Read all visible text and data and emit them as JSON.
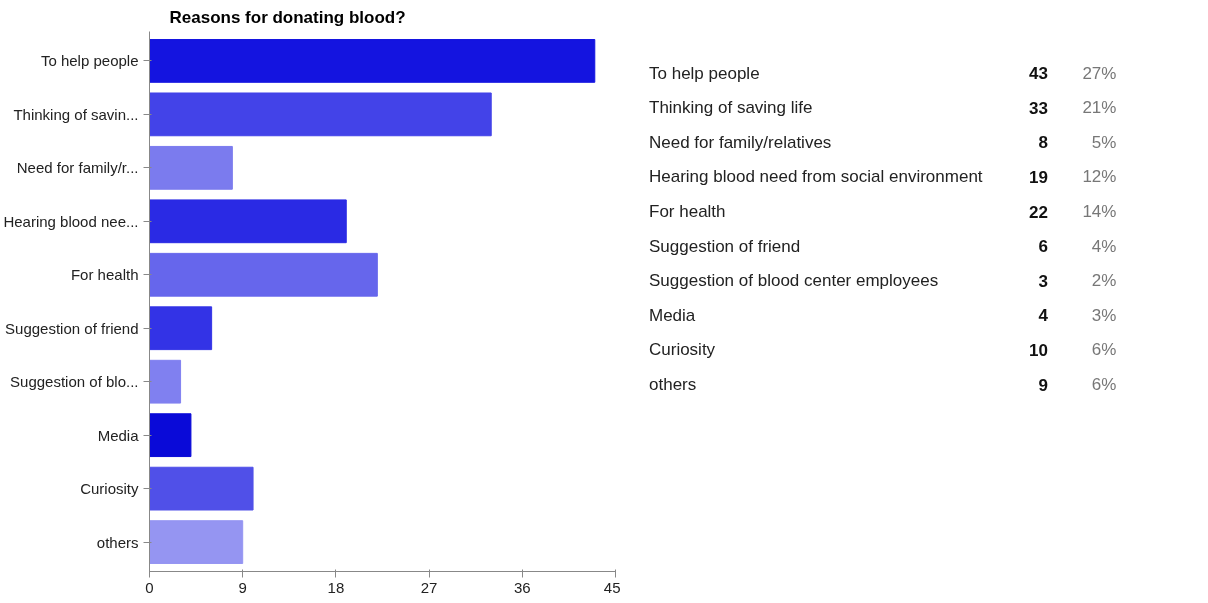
{
  "chart_data": [
    {
      "type": "bar",
      "orientation": "horizontal",
      "title": "Reasons for donating blood?",
      "categories": [
        "To help people",
        "Thinking of savin...",
        "Need for family/r...",
        "Hearing blood nee...",
        "For health",
        "Suggestion of friend",
        "Suggestion of blo...",
        "Media",
        "Curiosity",
        "others"
      ],
      "values": [
        43,
        33,
        8,
        19,
        22,
        6,
        3,
        4,
        10,
        9
      ],
      "colors": [
        "#1414e0",
        "#4343e8",
        "#7b7bee",
        "#2a2ae4",
        "#6666ec",
        "#3333e6",
        "#8080f0",
        "#0a0ad8",
        "#5050e8",
        "#9595f2"
      ],
      "xlim": [
        0,
        45
      ],
      "xticks": [
        0,
        9,
        18,
        27,
        36,
        45
      ],
      "grid": false
    },
    {
      "type": "other",
      "categories": [
        "To help people",
        "Thinking of saving life",
        "Need for family/relatives",
        "Hearing blood need from social environment",
        "For health",
        "Suggestion of friend",
        "Suggestion of blood center employees",
        "Media",
        "Curiosity",
        "others"
      ],
      "values": [
        43,
        33,
        8,
        19,
        22,
        6,
        3,
        4,
        10,
        9
      ],
      "data_labels": true,
      "annotations": [
        "27%",
        "21%",
        "5%",
        "12%",
        "14%",
        "4%",
        "2%",
        "3%",
        "6%",
        "6%"
      ]
    }
  ]
}
